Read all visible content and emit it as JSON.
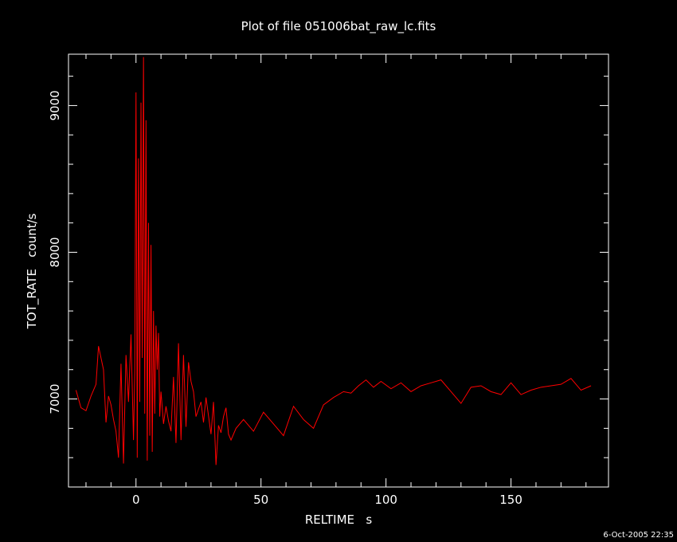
{
  "chart_data": {
    "type": "line",
    "title": "Plot of file 051006bat_raw_lc.fits",
    "xlabel": "RELTIME   s",
    "ylabel": "TOT_RATE   count/s",
    "xlim": [
      -27,
      189
    ],
    "ylim": [
      6400,
      9350
    ],
    "x_ticks": [
      0,
      50,
      100,
      150
    ],
    "y_ticks": [
      7000,
      8000,
      9000
    ],
    "grid": false,
    "legend": "none",
    "colors": {
      "background": "#000000",
      "axes": "#ffffff",
      "line": "#ff0000"
    },
    "series": [
      {
        "x": [
          -24,
          -22,
          -20,
          -18,
          -16,
          -15,
          -13,
          -12,
          -11,
          -10,
          -9,
          -8,
          -7,
          -6,
          -5,
          -4,
          -3,
          -2,
          -1,
          -0.5,
          0,
          0.5,
          1,
          1.5,
          2,
          2.5,
          3,
          3.5,
          4,
          4.5,
          5,
          5.5,
          6,
          6.5,
          7,
          7.5,
          8,
          8.5,
          9,
          9.5,
          10,
          11,
          12,
          13,
          14,
          15,
          16,
          17,
          18,
          19,
          20,
          21,
          22,
          23,
          24,
          26,
          27,
          28,
          30,
          31,
          32,
          33,
          34,
          35,
          36,
          37,
          38,
          40,
          43,
          47,
          51,
          55,
          59,
          63,
          67,
          71,
          75,
          79,
          83,
          86,
          89,
          92,
          95,
          98,
          102,
          106,
          110,
          114,
          118,
          122,
          126,
          130,
          134,
          138,
          142,
          146,
          150,
          154,
          158,
          162,
          166,
          170,
          174,
          178,
          182
        ],
        "values": [
          7060,
          6940,
          6920,
          7020,
          7100,
          7360,
          7200,
          6840,
          7020,
          6960,
          6860,
          6780,
          6600,
          7240,
          6560,
          7300,
          6980,
          7440,
          6720,
          7180,
          9090,
          6600,
          8640,
          6980,
          9020,
          7280,
          9330,
          6900,
          8900,
          6580,
          8200,
          6750,
          8050,
          6640,
          7600,
          6900,
          7500,
          7200,
          7450,
          6880,
          7050,
          6830,
          6950,
          6850,
          6780,
          7150,
          6700,
          7380,
          6720,
          7300,
          6810,
          7250,
          7120,
          7050,
          6880,
          6980,
          6840,
          7010,
          6760,
          6980,
          6550,
          6820,
          6770,
          6880,
          6940,
          6760,
          6720,
          6800,
          6860,
          6780,
          6910,
          6830,
          6750,
          6950,
          6860,
          6800,
          6960,
          7010,
          7050,
          7040,
          7090,
          7130,
          7080,
          7120,
          7070,
          7110,
          7050,
          7090,
          7110,
          7130,
          7050,
          6970,
          7080,
          7090,
          7050,
          7030,
          7110,
          7030,
          7060,
          7080,
          7090,
          7100,
          7140,
          7060,
          7090
        ]
      }
    ]
  },
  "footer": {
    "timestamp": "6-Oct-2005 22:35"
  }
}
